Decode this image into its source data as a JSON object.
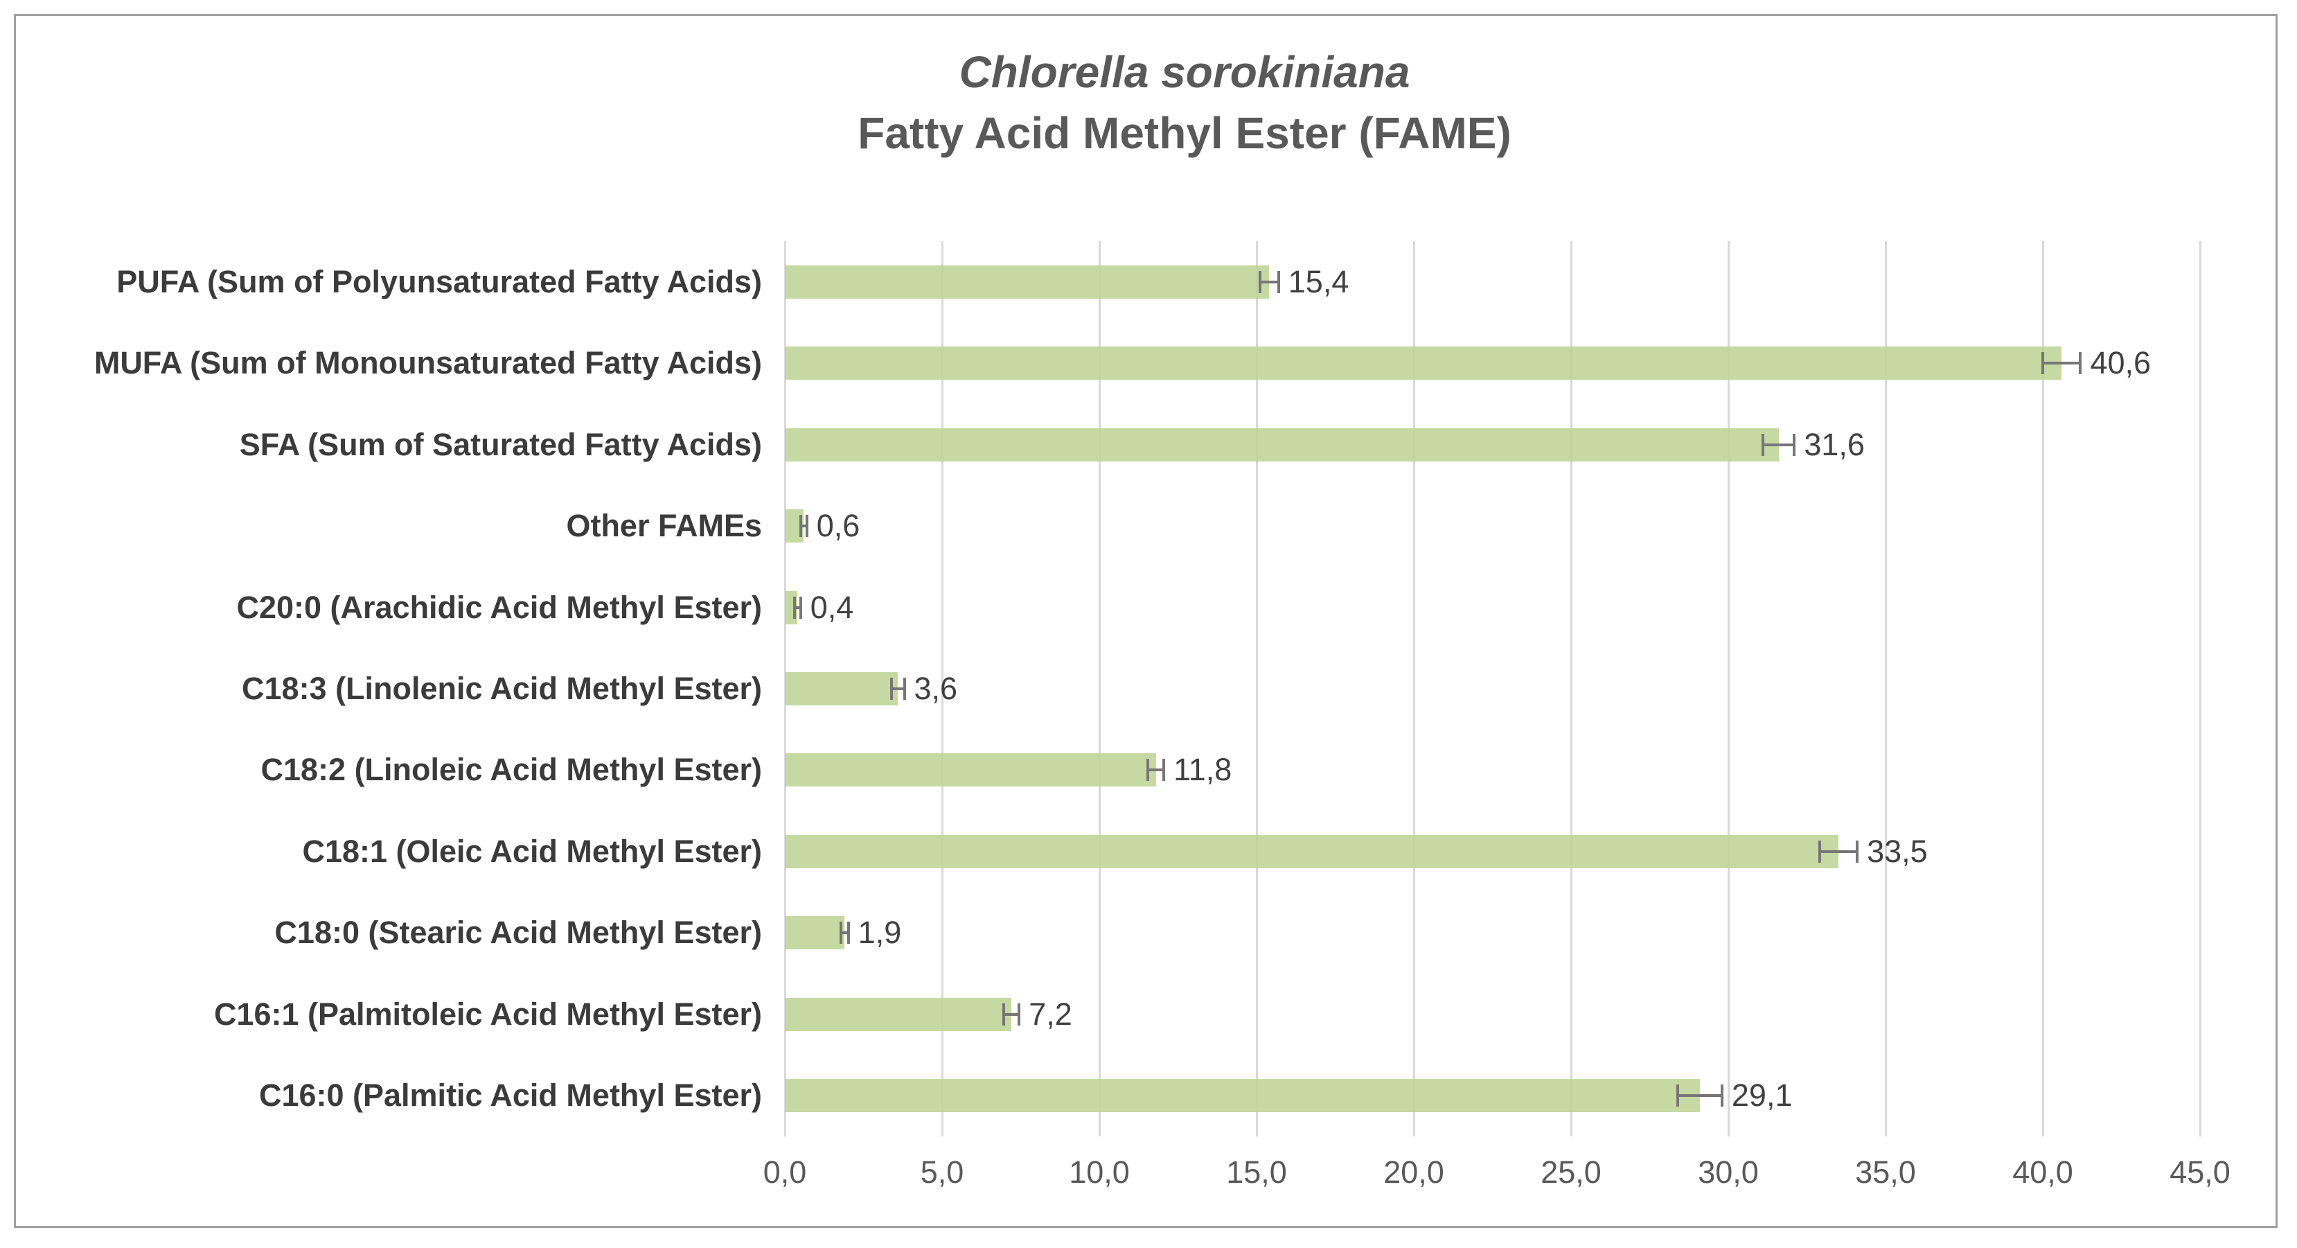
{
  "title": {
    "line1": "Chlorella sorokiniana",
    "line2": "Fatty Acid Methyl Ester (FAME)"
  },
  "chart_data": {
    "type": "bar",
    "orientation": "horizontal",
    "title": "Chlorella sorokiniana",
    "subtitle": "Fatty Acid Methyl Ester (FAME)",
    "categories": [
      "PUFA (Sum of Polyunsaturated Fatty Acids)",
      "MUFA (Sum of Monounsaturated Fatty Acids)",
      "SFA (Sum of Saturated Fatty Acids)",
      "Other FAMEs",
      "C20:0 (Arachidic Acid Methyl Ester)",
      "C18:3 (Linolenic Acid Methyl Ester)",
      "C18:2 (Linoleic Acid Methyl Ester)",
      "C18:1 (Oleic Acid Methyl Ester)",
      "C18:0 (Stearic Acid Methyl Ester)",
      "C16:1 (Palmitoleic Acid Methyl Ester)",
      "C16:0 (Palmitic Acid Methyl Ester)"
    ],
    "values": [
      15.4,
      40.6,
      31.6,
      0.6,
      0.4,
      3.6,
      11.8,
      33.5,
      1.9,
      7.2,
      29.1
    ],
    "value_labels": [
      "15,4",
      "40,6",
      "31,6",
      "0,6",
      "0,4",
      "3,6",
      "11,8",
      "33,5",
      "1,9",
      "7,2",
      "29,1"
    ],
    "errors": [
      0.3,
      0.6,
      0.5,
      0.1,
      0.1,
      0.2,
      0.25,
      0.6,
      0.12,
      0.25,
      0.7
    ],
    "x_tick_labels": [
      "0,0",
      "5,0",
      "10,0",
      "15,0",
      "20,0",
      "25,0",
      "30,0",
      "35,0",
      "40,0",
      "45,0"
    ],
    "x_tick_values": [
      0,
      5,
      10,
      15,
      20,
      25,
      30,
      35,
      40,
      45
    ],
    "xlim": [
      0,
      45
    ],
    "xlabel": "",
    "ylabel": "",
    "grid": "vertical-only",
    "legend": "none",
    "colors": {
      "bar_fill": "#c5d79e",
      "error_bar": "#767676",
      "gridline": "#d9d9d9",
      "category_text": "#3b3b3b",
      "value_text": "#404040",
      "tick_text": "#595959",
      "title_text": "#595959",
      "chart_border": "#a0a0a0"
    }
  }
}
